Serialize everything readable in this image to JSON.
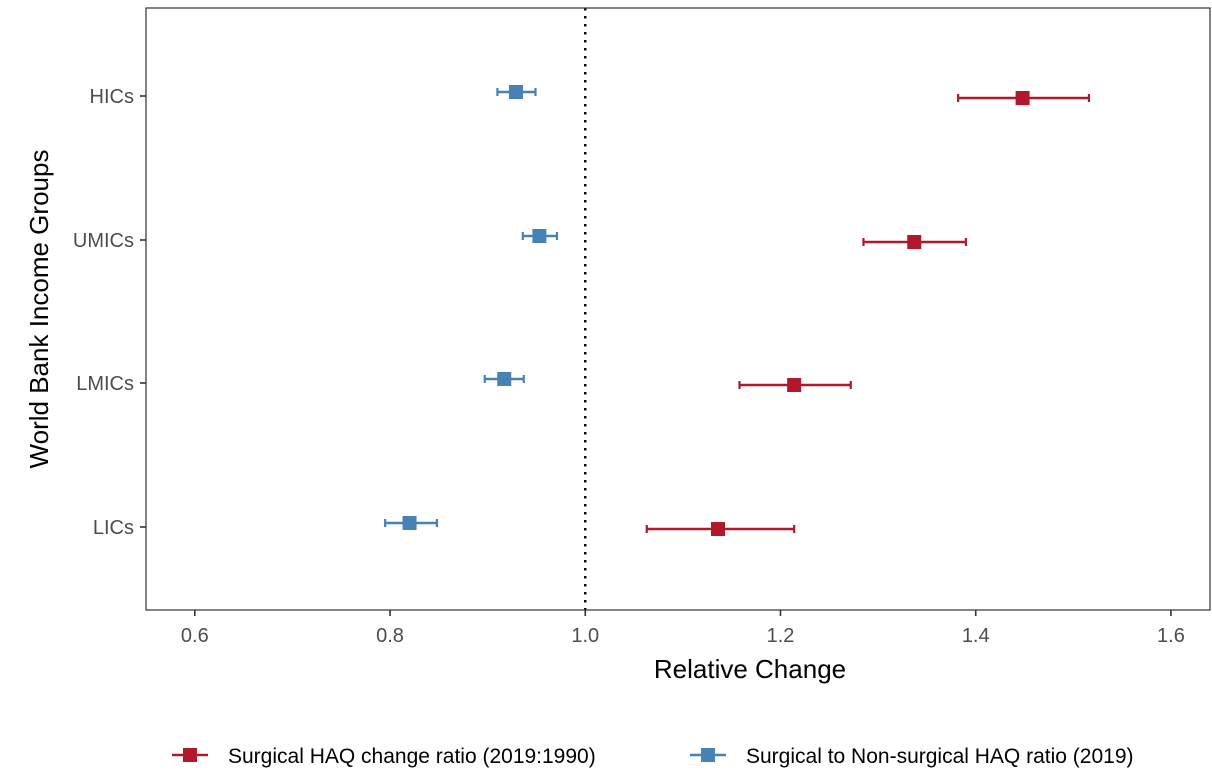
{
  "chart_data": {
    "type": "scatter",
    "subtype": "point-range",
    "orientation": "horizontal",
    "xlabel": "Relative Change",
    "ylabel": "World Bank Income Groups",
    "xlim": [
      0.55,
      1.64
    ],
    "xticks": [
      0.6,
      0.8,
      1.0,
      1.2,
      1.4,
      1.6
    ],
    "xtick_labels": [
      "0.6",
      "0.8",
      "1.0",
      "1.2",
      "1.4",
      "1.6"
    ],
    "categories": [
      "HICs",
      "UMICs",
      "LMICs",
      "LICs"
    ],
    "reference_line": {
      "x": 1.0,
      "style": "dotted",
      "color": "#000000"
    },
    "grid": false,
    "legend": {
      "position": "bottom"
    },
    "marker": "square",
    "series": [
      {
        "name": "Surgical HAQ change ratio (2019:1990)",
        "color": "#B2182B",
        "points": [
          {
            "category": "HICs",
            "value": 1.448,
            "lower": 1.382,
            "upper": 1.516
          },
          {
            "category": "UMICs",
            "value": 1.337,
            "lower": 1.285,
            "upper": 1.39
          },
          {
            "category": "LMICs",
            "value": 1.214,
            "lower": 1.158,
            "upper": 1.272
          },
          {
            "category": "LICs",
            "value": 1.136,
            "lower": 1.063,
            "upper": 1.214
          }
        ]
      },
      {
        "name": "Surgical to Non-surgical HAQ ratio (2019)",
        "color": "#4682B4",
        "points": [
          {
            "category": "HICs",
            "value": 0.929,
            "lower": 0.91,
            "upper": 0.949
          },
          {
            "category": "UMICs",
            "value": 0.953,
            "lower": 0.936,
            "upper": 0.971
          },
          {
            "category": "LMICs",
            "value": 0.917,
            "lower": 0.897,
            "upper": 0.937
          },
          {
            "category": "LICs",
            "value": 0.82,
            "lower": 0.795,
            "upper": 0.848
          }
        ]
      }
    ]
  }
}
